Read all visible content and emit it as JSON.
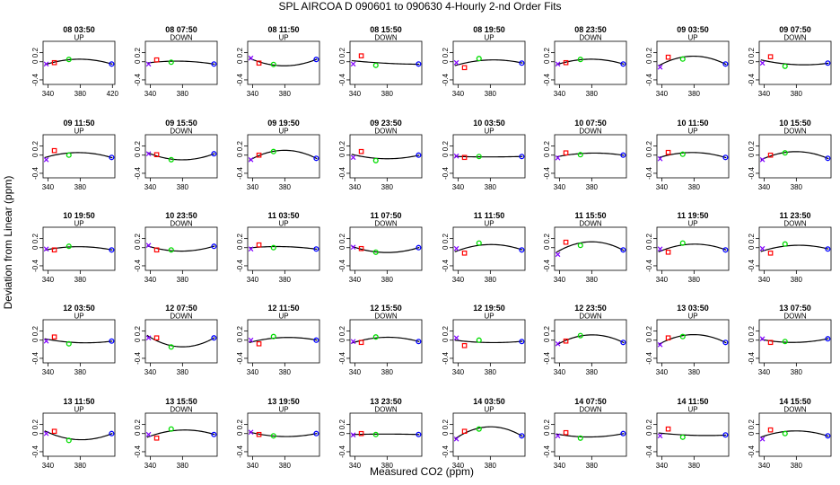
{
  "title": "SPL   AIRCOA D   090601 to 090630   4-Hourly 2-nd Order Fits",
  "xlabel": "Measured CO2 (ppm)",
  "ylabel": "Deviation from Linear (ppm)",
  "colors": {
    "p1": "#8000ff",
    "p2": "#ff0000",
    "p3": "#00dd00",
    "p4": "#0000ff",
    "curve": "#000000"
  },
  "chart_data": {
    "type": "scatter",
    "grid": false,
    "layout": "5 rows x 8 columns of small multiples",
    "ylim": [
      -0.5,
      0.45
    ],
    "yticks": [
      -0.4,
      0,
      0.2
    ],
    "standard_x": [
      338,
      348,
      366,
      419
    ],
    "panels": [
      {
        "label": "08 03:50",
        "dir": "UP",
        "y": [
          -0.05,
          -0.02,
          0.05,
          -0.05
        ],
        "xlim": [
          334,
          423
        ],
        "xticks": [
          340,
          380,
          420
        ]
      },
      {
        "label": "08 07:50",
        "dir": "DOWN",
        "y": [
          -0.05,
          0.04,
          -0.01,
          -0.05
        ],
        "xlim": [
          334,
          423
        ],
        "xticks": [
          340,
          380
        ]
      },
      {
        "label": "08 11:50",
        "dir": "UP",
        "y": [
          0.08,
          -0.03,
          -0.06,
          0.05
        ],
        "xlim": [
          334,
          423
        ],
        "xticks": [
          340,
          380
        ]
      },
      {
        "label": "08 15:50",
        "dir": "DOWN",
        "y": [
          -0.05,
          0.13,
          -0.08,
          -0.05
        ],
        "xlim": [
          334,
          423
        ],
        "xticks": [
          340,
          380
        ]
      },
      {
        "label": "08 19:50",
        "dir": "UP",
        "y": [
          -0.02,
          -0.13,
          0.07,
          -0.03
        ],
        "xlim": [
          334,
          423
        ],
        "xticks": [
          340,
          380
        ]
      },
      {
        "label": "08 23:50",
        "dir": "DOWN",
        "y": [
          -0.05,
          -0.02,
          0.05,
          -0.05
        ],
        "xlim": [
          334,
          423
        ],
        "xticks": [
          340,
          380
        ]
      },
      {
        "label": "09 03:50",
        "dir": "UP",
        "y": [
          -0.12,
          0.1,
          0.06,
          -0.05
        ],
        "xlim": [
          334,
          423
        ],
        "xticks": [
          340,
          380
        ]
      },
      {
        "label": "09 07:50",
        "dir": "DOWN",
        "y": [
          -0.03,
          0.11,
          -0.1,
          -0.03
        ],
        "xlim": [
          334,
          423
        ],
        "xticks": [
          340,
          380
        ]
      },
      {
        "label": "09 11:50",
        "dir": "UP",
        "y": [
          -0.1,
          0.1,
          0.0,
          -0.05
        ],
        "xlim": [
          334,
          423
        ],
        "xticks": [
          340,
          380
        ]
      },
      {
        "label": "09 15:50",
        "dir": "DOWN",
        "y": [
          0.03,
          0.01,
          -0.1,
          0.03
        ],
        "xlim": [
          334,
          423
        ],
        "xticks": [
          340,
          380
        ]
      },
      {
        "label": "09 19:50",
        "dir": "UP",
        "y": [
          -0.1,
          0.0,
          0.08,
          -0.07
        ],
        "xlim": [
          334,
          423
        ],
        "xticks": [
          340,
          380
        ]
      },
      {
        "label": "09 23:50",
        "dir": "DOWN",
        "y": [
          -0.05,
          0.08,
          -0.12,
          0.0
        ],
        "xlim": [
          334,
          423
        ],
        "xticks": [
          340,
          380
        ]
      },
      {
        "label": "10 03:50",
        "dir": "UP",
        "y": [
          -0.02,
          -0.05,
          -0.03,
          -0.03
        ],
        "xlim": [
          334,
          423
        ],
        "xticks": [
          340,
          380
        ]
      },
      {
        "label": "10 07:50",
        "dir": "DOWN",
        "y": [
          -0.06,
          0.05,
          0.01,
          0.0
        ],
        "xlim": [
          334,
          423
        ],
        "xticks": [
          340,
          380
        ]
      },
      {
        "label": "10 11:50",
        "dir": "UP",
        "y": [
          -0.08,
          0.06,
          0.02,
          -0.05
        ],
        "xlim": [
          334,
          423
        ],
        "xticks": [
          340,
          380
        ]
      },
      {
        "label": "10 15:50",
        "dir": "DOWN",
        "y": [
          -0.1,
          0.0,
          0.05,
          -0.07
        ],
        "xlim": [
          334,
          423
        ],
        "xticks": [
          340,
          380
        ]
      },
      {
        "label": "10 19:50",
        "dir": "UP",
        "y": [
          -0.03,
          -0.05,
          0.03,
          -0.05
        ],
        "xlim": [
          334,
          423
        ],
        "xticks": [
          340,
          380
        ]
      },
      {
        "label": "10 23:50",
        "dir": "DOWN",
        "y": [
          0.05,
          -0.05,
          -0.05,
          0.03
        ],
        "xlim": [
          334,
          423
        ],
        "xticks": [
          340,
          380
        ]
      },
      {
        "label": "11 03:50",
        "dir": "UP",
        "y": [
          -0.03,
          0.06,
          0.0,
          -0.03
        ],
        "xlim": [
          334,
          423
        ],
        "xticks": [
          340,
          380
        ]
      },
      {
        "label": "11 07:50",
        "dir": "DOWN",
        "y": [
          0.01,
          -0.02,
          -0.1,
          0.0
        ],
        "xlim": [
          334,
          423
        ],
        "xticks": [
          340,
          380
        ]
      },
      {
        "label": "11 11:50",
        "dir": "UP",
        "y": [
          -0.02,
          -0.12,
          0.1,
          -0.05
        ],
        "xlim": [
          334,
          423
        ],
        "xticks": [
          340,
          380
        ]
      },
      {
        "label": "11 15:50",
        "dir": "DOWN",
        "y": [
          -0.15,
          0.12,
          0.05,
          -0.05
        ],
        "xlim": [
          334,
          423
        ],
        "xticks": [
          340,
          380
        ]
      },
      {
        "label": "11 19:50",
        "dir": "UP",
        "y": [
          -0.03,
          -0.1,
          0.1,
          -0.05
        ],
        "xlim": [
          334,
          423
        ],
        "xticks": [
          340,
          380
        ]
      },
      {
        "label": "11 23:50",
        "dir": "DOWN",
        "y": [
          -0.02,
          -0.12,
          0.08,
          -0.03
        ],
        "xlim": [
          334,
          423
        ],
        "xticks": [
          340,
          380
        ]
      },
      {
        "label": "12 03:50",
        "dir": "UP",
        "y": [
          -0.02,
          0.07,
          -0.08,
          -0.02
        ],
        "xlim": [
          334,
          423
        ],
        "xticks": [
          340,
          380
        ]
      },
      {
        "label": "12 07:50",
        "dir": "DOWN",
        "y": [
          0.05,
          0.05,
          -0.15,
          0.05
        ],
        "xlim": [
          334,
          423
        ],
        "xticks": [
          340,
          380
        ]
      },
      {
        "label": "12 11:50",
        "dir": "UP",
        "y": [
          0.0,
          -0.08,
          0.08,
          0.0
        ],
        "xlim": [
          334,
          423
        ],
        "xticks": [
          340,
          380
        ]
      },
      {
        "label": "12 15:50",
        "dir": "DOWN",
        "y": [
          -0.03,
          -0.05,
          0.07,
          -0.03
        ],
        "xlim": [
          334,
          423
        ],
        "xticks": [
          340,
          380
        ]
      },
      {
        "label": "12 19:50",
        "dir": "UP",
        "y": [
          0.05,
          -0.12,
          0.0,
          -0.03
        ],
        "xlim": [
          334,
          423
        ],
        "xticks": [
          340,
          380
        ]
      },
      {
        "label": "12 23:50",
        "dir": "DOWN",
        "y": [
          -0.08,
          -0.02,
          0.1,
          -0.05
        ],
        "xlim": [
          334,
          423
        ],
        "xticks": [
          340,
          380
        ]
      },
      {
        "label": "13 03:50",
        "dir": "UP",
        "y": [
          -0.1,
          0.05,
          0.08,
          -0.05
        ],
        "xlim": [
          334,
          423
        ],
        "xticks": [
          340,
          380
        ]
      },
      {
        "label": "13 07:50",
        "dir": "DOWN",
        "y": [
          0.03,
          -0.05,
          -0.03,
          0.03
        ],
        "xlim": [
          334,
          423
        ],
        "xticks": [
          340,
          380
        ]
      },
      {
        "label": "13 11:50",
        "dir": "UP",
        "y": [
          0.0,
          0.05,
          -0.15,
          0.0
        ],
        "xlim": [
          334,
          423
        ],
        "xticks": [
          340,
          380
        ]
      },
      {
        "label": "13 15:50",
        "dir": "DOWN",
        "y": [
          -0.02,
          -0.1,
          0.1,
          -0.02
        ],
        "xlim": [
          334,
          423
        ],
        "xticks": [
          340,
          380
        ]
      },
      {
        "label": "13 19:50",
        "dir": "UP",
        "y": [
          0.03,
          -0.02,
          -0.05,
          0.0
        ],
        "xlim": [
          334,
          423
        ],
        "xticks": [
          340,
          380
        ]
      },
      {
        "label": "13 23:50",
        "dir": "DOWN",
        "y": [
          -0.03,
          0.0,
          -0.02,
          -0.02
        ],
        "xlim": [
          334,
          423
        ],
        "xticks": [
          340,
          380
        ]
      },
      {
        "label": "14 03:50",
        "dir": "UP",
        "y": [
          -0.12,
          0.05,
          0.1,
          -0.05
        ],
        "xlim": [
          334,
          423
        ],
        "xticks": [
          340,
          380
        ]
      },
      {
        "label": "14 07:50",
        "dir": "DOWN",
        "y": [
          -0.05,
          0.02,
          -0.1,
          0.0
        ],
        "xlim": [
          334,
          423
        ],
        "xticks": [
          340,
          380
        ]
      },
      {
        "label": "14 11:50",
        "dir": "UP",
        "y": [
          -0.05,
          0.1,
          -0.08,
          -0.03
        ],
        "xlim": [
          334,
          423
        ],
        "xticks": [
          340,
          380
        ]
      },
      {
        "label": "14 15:50",
        "dir": "DOWN",
        "y": [
          -0.12,
          0.08,
          0.0,
          -0.05
        ],
        "xlim": [
          334,
          423
        ],
        "xticks": [
          340,
          380
        ]
      }
    ]
  }
}
